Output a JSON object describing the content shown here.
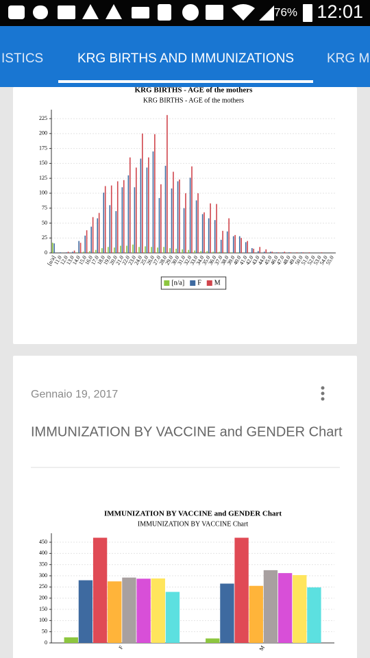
{
  "status_bar": {
    "battery": "76%",
    "time": "12:01"
  },
  "tabs": [
    "ISTICS",
    "KRG BIRTHS AND IMMUNIZATIONS",
    "KRG M"
  ],
  "post": {
    "date": "Gennaio 19, 2017",
    "title": "IMMUNIZATION BY VACCINE and GENDER Chart"
  },
  "chart_data": [
    {
      "type": "bar",
      "title": "KRG BIRTHS - AGE of the mothers",
      "subtitle": "KRG BIRTHS - AGE of the mothers",
      "categories": [
        "[n/a]",
        "11.0",
        "12.0",
        "13.0",
        "14.0",
        "15.0",
        "16.0",
        "17.0",
        "18.0",
        "19.0",
        "20.0",
        "21.0",
        "22.0",
        "23.0",
        "24.0",
        "25.0",
        "26.0",
        "27.0",
        "28.0",
        "29.0",
        "30.0",
        "31.0",
        "32.0",
        "33.0",
        "34.0",
        "35.0",
        "36.0",
        "37.0",
        "38.0",
        "39.0",
        "40.0",
        "41.0",
        "42.0",
        "43.0",
        "44.0",
        "45.0",
        "46.0",
        "47.0",
        "48.0",
        "49.0",
        "50.0",
        "51.0",
        "52.0",
        "53.0",
        "54.0",
        "55.0"
      ],
      "series": [
        {
          "name": "[n/a]",
          "color": "#8dc63f",
          "values": [
            17,
            0,
            0,
            0,
            1,
            2,
            3,
            5,
            8,
            10,
            9,
            12,
            12,
            14,
            10,
            11,
            10,
            9,
            10,
            8,
            7,
            6,
            5,
            4,
            3,
            3,
            2,
            2,
            1,
            1,
            1,
            0,
            0,
            0,
            0,
            0,
            0,
            0,
            0,
            0,
            0,
            0,
            0,
            0,
            0,
            0
          ]
        },
        {
          "name": "F",
          "color": "#3e6aa0",
          "values": [
            16,
            1,
            1,
            2,
            20,
            29,
            44,
            58,
            101,
            80,
            70,
            110,
            130,
            110,
            158,
            143,
            170,
            92,
            146,
            108,
            120,
            75,
            126,
            88,
            65,
            58,
            55,
            22,
            36,
            28,
            28,
            18,
            8,
            3,
            2,
            2,
            1,
            1,
            1,
            0,
            1,
            0,
            0,
            0,
            0,
            0
          ]
        },
        {
          "name": "M",
          "color": "#d0454c",
          "values": [
            0,
            0,
            2,
            4,
            17,
            38,
            60,
            67,
            112,
            113,
            120,
            122,
            160,
            143,
            200,
            160,
            199,
            115,
            231,
            136,
            123,
            100,
            145,
            100,
            68,
            83,
            82,
            37,
            58,
            30,
            25,
            20,
            7,
            10,
            6,
            2,
            1,
            2,
            1,
            1,
            1,
            1,
            0,
            1,
            0,
            0
          ]
        }
      ],
      "ylim": [
        0,
        240
      ],
      "yticks": [
        0,
        25,
        50,
        75,
        100,
        125,
        150,
        175,
        200,
        225
      ],
      "grid": true,
      "legend": "bottom"
    },
    {
      "type": "bar",
      "title": "IMMUNIZATION BY VACCINE and GENDER Chart",
      "subtitle": "IMMUNIZATION BY VACCINE Chart",
      "categories": [
        "F",
        "M"
      ],
      "series": [
        {
          "color": "#8dc63f",
          "values": [
            25,
            20
          ]
        },
        {
          "color": "#3e6aa0",
          "values": [
            280,
            265
          ]
        },
        {
          "color": "#e04a55",
          "values": [
            470,
            470
          ]
        },
        {
          "color": "#ffb43a",
          "values": [
            275,
            255
          ]
        },
        {
          "color": "#a8a0a0",
          "values": [
            292,
            325
          ]
        },
        {
          "color": "#d84fd8",
          "values": [
            287,
            312
          ]
        },
        {
          "color": "#ffe55c",
          "values": [
            288,
            303
          ]
        },
        {
          "color": "#5ce0e0",
          "values": [
            228,
            248
          ]
        }
      ],
      "ylim": [
        0,
        490
      ],
      "yticks": [
        0,
        50,
        100,
        150,
        200,
        250,
        300,
        350,
        400,
        450
      ],
      "grid": true
    }
  ]
}
